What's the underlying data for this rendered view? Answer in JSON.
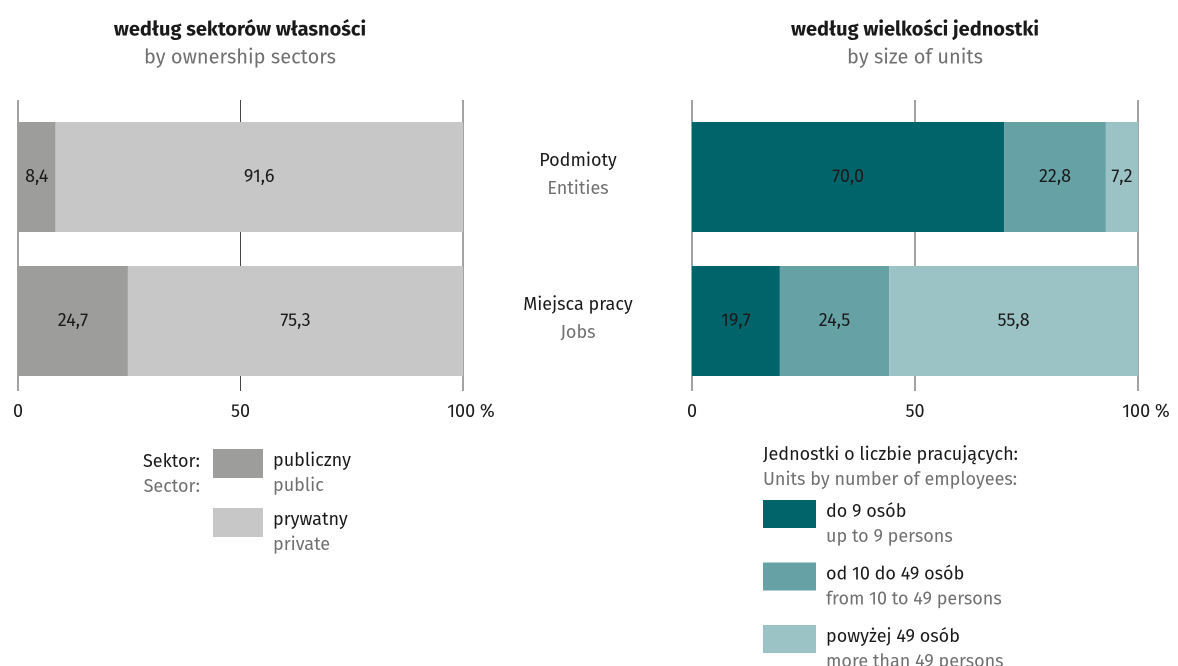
{
  "chart_data": [
    {
      "type": "stacked_bar",
      "orientation": "horizontal",
      "title": "według sektorów własności",
      "subtitle": "by ownership sectors",
      "xlim": [
        0,
        100
      ],
      "xticks": [
        0,
        50,
        {
          "value": 100,
          "label": "100 %"
        }
      ],
      "grid": true,
      "legend_title": "Sektor:",
      "legend_title_en": "Sector:",
      "series": [
        {
          "name": "publiczny",
          "name_en": "public",
          "color": "#9d9d9c",
          "label_color": "#1a1a1a",
          "values": [
            8.4,
            24.7
          ],
          "value_labels": [
            "8,4",
            "24,7"
          ]
        },
        {
          "name": "prywatny",
          "name_en": "private",
          "color": "#c6c7c6",
          "label_color": "#1a1a1a",
          "values": [
            91.6,
            75.3
          ],
          "value_labels": [
            "91,6",
            "75,3"
          ]
        }
      ]
    },
    {
      "type": "stacked_bar",
      "orientation": "horizontal",
      "title": "według wielkości jednostki",
      "subtitle": "by size of units",
      "categories": [
        "Podmioty",
        "Miejsca pracy"
      ],
      "categories_en": [
        "Entities",
        "Jobs"
      ],
      "xlim": [
        0,
        100
      ],
      "xticks": [
        0,
        50,
        {
          "value": 100,
          "label": "100 %"
        }
      ],
      "grid": true,
      "legend_title": "Jednostki o liczbie pracujących:",
      "legend_title_en": "Units by number of employees:",
      "series": [
        {
          "name": "do 9 osób",
          "name_en": "up to 9 persons",
          "color": "#00646a",
          "label_color": "#ffffff",
          "values": [
            70.0,
            19.7
          ],
          "value_labels": [
            "70,0",
            "19,7"
          ]
        },
        {
          "name": "od 10 do 49 osób",
          "name_en": "from 10 to 49 persons",
          "color": "#66a2a5",
          "label_color": "#1a1a1a",
          "values": [
            22.8,
            24.5
          ],
          "value_labels": [
            "22,8",
            "24,5"
          ]
        },
        {
          "name": "powyżej 49 osób",
          "name_en": "more than 49 persons",
          "color": "#9bc3c5",
          "label_color": "#1a1a1a",
          "values": [
            7.2,
            55.8
          ],
          "value_labels": [
            "7,2",
            "55,8"
          ]
        }
      ]
    }
  ]
}
